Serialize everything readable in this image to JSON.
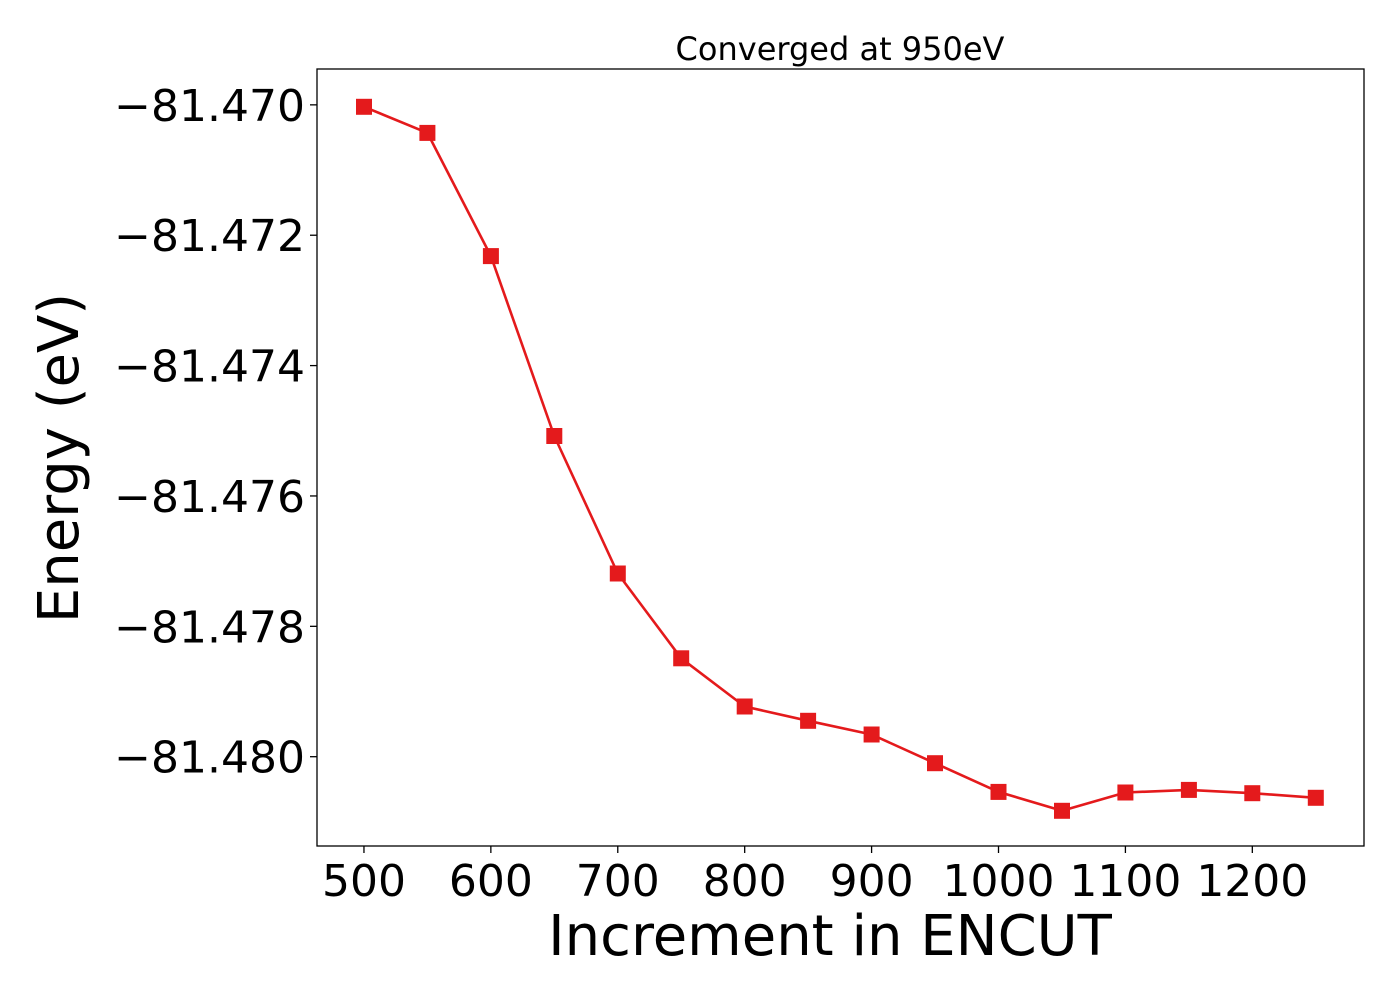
{
  "chart_data": {
    "type": "line",
    "title": "Converged at 950eV",
    "xlabel": "Increment in ENCUT",
    "ylabel": "Energy (eV)",
    "x": [
      500,
      550,
      600,
      650,
      700,
      750,
      800,
      850,
      900,
      950,
      1000,
      1050,
      1100,
      1150,
      1200,
      1250
    ],
    "x_ticks": [
      500,
      600,
      700,
      800,
      900,
      1000,
      1100,
      1200
    ],
    "x_tick_labels": [
      "500",
      "600",
      "700",
      "800",
      "900",
      "1000",
      "1100",
      "1200"
    ],
    "y_ticks": [
      -81.47,
      -81.472,
      -81.474,
      -81.476,
      -81.478,
      -81.48
    ],
    "y_tick_labels": [
      "−81.470",
      "−81.472",
      "−81.474",
      "−81.476",
      "−81.478",
      "−81.480"
    ],
    "xlim": [
      463,
      1288
    ],
    "ylim": [
      -81.48137,
      -81.46945
    ],
    "grid": false,
    "legend": "none",
    "series": [
      {
        "color": "#e41a1c",
        "marker": "square",
        "values": [
          -81.47003,
          -81.47043,
          -81.47232,
          -81.47508,
          -81.47719,
          -81.47849,
          -81.47923,
          -81.47945,
          -81.47966,
          -81.4801,
          -81.48054,
          -81.48083,
          -81.48055,
          -81.48051,
          -81.48056,
          -81.48063
        ]
      }
    ]
  }
}
